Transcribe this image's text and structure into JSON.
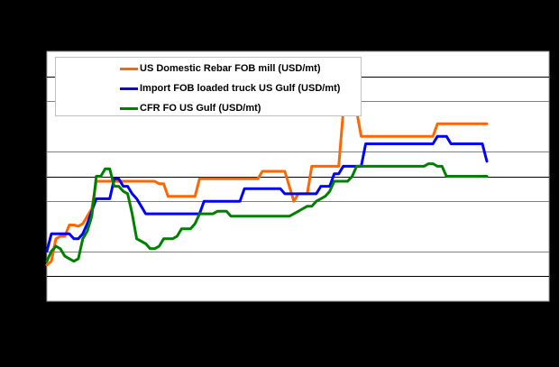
{
  "chart_data": {
    "type": "line",
    "title": "",
    "xlabel": "",
    "ylabel": "",
    "axis_note": "Axis tick labels are not visible (rendered black on black); values below are on a relative scale 0–10 where each gridline step = 1 unit (bottom of plot = 0, top = 10).",
    "ylim": [
      0,
      10
    ],
    "grid": true,
    "gridlines_y": [
      1,
      2,
      4,
      5,
      6,
      8,
      9
    ],
    "legend_position": "top-left inside plot",
    "x_index": [
      0,
      1,
      2,
      3,
      4,
      5,
      6,
      7,
      8,
      9,
      10,
      11,
      12,
      13,
      14,
      15,
      16,
      17,
      18,
      19,
      20,
      21,
      22,
      23,
      24,
      25,
      26,
      27,
      28,
      29,
      30,
      31,
      32,
      33,
      34,
      35,
      36,
      37,
      38,
      39,
      40,
      41,
      42,
      43,
      44,
      45,
      46,
      47,
      48,
      49,
      50,
      51,
      52,
      53,
      54,
      55,
      56,
      57,
      58,
      59,
      60,
      61,
      62,
      63,
      64,
      65,
      66,
      67,
      68,
      69,
      70,
      71,
      72,
      73,
      74,
      75,
      76,
      77,
      78,
      79,
      80,
      81,
      82,
      83,
      84,
      85,
      86,
      87,
      88,
      89,
      90,
      91,
      92,
      93,
      94,
      95,
      96,
      97,
      98
    ],
    "series": [
      {
        "name": "US Domestic Rebar FOB mill (USD/mt)",
        "color": "#ff6600",
        "values": [
          1.45,
          1.6,
          2.5,
          2.6,
          2.6,
          3.05,
          3.05,
          3.0,
          3.1,
          3.4,
          3.7,
          4.8,
          4.8,
          4.8,
          4.8,
          4.8,
          4.8,
          4.8,
          4.8,
          4.8,
          4.8,
          4.8,
          4.8,
          4.8,
          4.8,
          4.7,
          4.7,
          4.2,
          4.2,
          4.2,
          4.2,
          4.2,
          4.2,
          4.2,
          4.9,
          4.9,
          4.9,
          4.9,
          4.9,
          4.9,
          4.9,
          4.9,
          4.9,
          4.9,
          4.9,
          4.9,
          4.9,
          4.9,
          5.2,
          5.2,
          5.2,
          5.2,
          5.2,
          5.2,
          4.6,
          4.0,
          4.3,
          4.3,
          4.3,
          5.4,
          5.4,
          5.4,
          5.4,
          5.4,
          5.4,
          5.4,
          7.6,
          7.6,
          7.6,
          7.6,
          6.6,
          6.6,
          6.6,
          6.6,
          6.6,
          6.6,
          6.6,
          6.6,
          6.6,
          6.6,
          6.6,
          6.6,
          6.6,
          6.6,
          6.6,
          6.6,
          6.6,
          7.1,
          7.1,
          7.1,
          7.1,
          7.1,
          7.1,
          7.1,
          7.1,
          7.1,
          7.1,
          7.1,
          7.1
        ],
        "sampling": "approximate trace"
      },
      {
        "name": "Import FOB loaded truck US Gulf (USD/mt)",
        "color": "#0000ff",
        "values": [
          2.0,
          2.7,
          2.7,
          2.7,
          2.7,
          2.7,
          2.5,
          2.5,
          2.7,
          3.1,
          3.6,
          4.1,
          4.1,
          4.1,
          4.1,
          4.9,
          4.9,
          4.6,
          4.6,
          4.3,
          4.1,
          3.8,
          3.5,
          3.5,
          3.5,
          3.5,
          3.5,
          3.5,
          3.5,
          3.5,
          3.5,
          3.5,
          3.5,
          3.5,
          3.5,
          4.0,
          4.0,
          4.0,
          4.0,
          4.0,
          4.0,
          4.0,
          4.0,
          4.0,
          4.5,
          4.5,
          4.5,
          4.5,
          4.5,
          4.5,
          4.5,
          4.5,
          4.5,
          4.3,
          4.3,
          4.3,
          4.3,
          4.3,
          4.3,
          4.3,
          4.3,
          4.6,
          4.6,
          4.6,
          5.1,
          5.1,
          5.4,
          5.4,
          5.4,
          5.4,
          5.4,
          6.3,
          6.3,
          6.3,
          6.3,
          6.3,
          6.3,
          6.3,
          6.3,
          6.3,
          6.3,
          6.3,
          6.3,
          6.3,
          6.3,
          6.3,
          6.3,
          6.6,
          6.6,
          6.6,
          6.3,
          6.3,
          6.3,
          6.3,
          6.3,
          6.3,
          6.3,
          6.3,
          5.6
        ],
        "sampling": "approximate trace"
      },
      {
        "name": "CFR FO US Gulf (USD/mt)",
        "color": "#008000",
        "values": [
          1.6,
          2.0,
          2.2,
          2.1,
          1.8,
          1.7,
          1.6,
          1.7,
          2.5,
          2.8,
          3.4,
          5.0,
          5.0,
          5.3,
          5.3,
          4.6,
          4.6,
          4.4,
          4.3,
          3.5,
          2.5,
          2.4,
          2.3,
          2.1,
          2.1,
          2.2,
          2.5,
          2.5,
          2.5,
          2.6,
          2.9,
          2.9,
          2.9,
          3.1,
          3.5,
          3.5,
          3.5,
          3.5,
          3.6,
          3.6,
          3.6,
          3.4,
          3.4,
          3.4,
          3.4,
          3.4,
          3.4,
          3.4,
          3.4,
          3.4,
          3.4,
          3.4,
          3.4,
          3.4,
          3.4,
          3.5,
          3.6,
          3.7,
          3.8,
          3.8,
          4.0,
          4.1,
          4.2,
          4.4,
          4.8,
          4.8,
          4.8,
          4.8,
          5.0,
          5.4,
          5.4,
          5.4,
          5.4,
          5.4,
          5.4,
          5.4,
          5.4,
          5.4,
          5.4,
          5.4,
          5.4,
          5.4,
          5.4,
          5.4,
          5.4,
          5.5,
          5.5,
          5.4,
          5.4,
          5.0,
          5.0,
          5.0,
          5.0,
          5.0,
          5.0,
          5.0,
          5.0,
          5.0,
          5.0
        ],
        "sampling": "approximate trace"
      }
    ]
  },
  "legend": {
    "items": [
      {
        "label": "US Domestic Rebar FOB mill (USD/mt)",
        "color": "#ff6600"
      },
      {
        "label": "Import FOB loaded truck US Gulf (USD/mt)",
        "color": "#0000ff"
      },
      {
        "label": "CFR FO US Gulf (USD/mt)",
        "color": "#008000"
      }
    ]
  }
}
